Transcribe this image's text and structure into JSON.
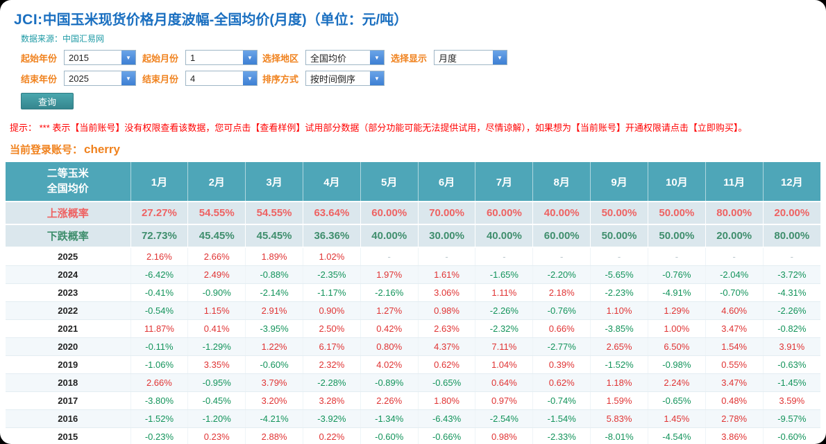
{
  "header": {
    "title_prefix": "JCI:",
    "title_main": "中国玉米现货价格月度波幅-全国均价(月度)（单位：元/吨）",
    "source": "数据来源：中国汇易网"
  },
  "filters": {
    "start_year": {
      "label": "起始年份",
      "value": "2015"
    },
    "start_month": {
      "label": "起始月份",
      "value": "1"
    },
    "region": {
      "label": "选择地区",
      "value": "全国均价"
    },
    "display": {
      "label": "选择显示",
      "value": "月度"
    },
    "end_year": {
      "label": "结束年份",
      "value": "2025"
    },
    "end_month": {
      "label": "结束月份",
      "value": "4"
    },
    "sort": {
      "label": "排序方式",
      "value": "按时间倒序"
    },
    "query_label": "查询"
  },
  "hint": {
    "text": "提示： *** 表示【当前账号】没有权限查看该数据，您可点击【查看样例】试用部分数据（部分功能可能无法提供试用，尽情谅解），如果想为【当前账号】开通权限请点击【立即购买】。"
  },
  "account": {
    "label": "当前登录账号：",
    "value": "cherry"
  },
  "table": {
    "corner": [
      "二等玉米",
      "全国均价"
    ],
    "months": [
      "1月",
      "2月",
      "3月",
      "4月",
      "5月",
      "6月",
      "7月",
      "8月",
      "9月",
      "10月",
      "11月",
      "12月"
    ],
    "rise": {
      "label": "上涨概率",
      "values": [
        "27.27%",
        "54.55%",
        "54.55%",
        "63.64%",
        "60.00%",
        "70.00%",
        "60.00%",
        "40.00%",
        "50.00%",
        "50.00%",
        "80.00%",
        "20.00%"
      ]
    },
    "fall": {
      "label": "下跌概率",
      "values": [
        "72.73%",
        "45.45%",
        "45.45%",
        "36.36%",
        "40.00%",
        "30.00%",
        "40.00%",
        "60.00%",
        "50.00%",
        "50.00%",
        "20.00%",
        "80.00%"
      ]
    },
    "years": [
      {
        "year": "2025",
        "values": [
          "2.16%",
          "2.66%",
          "1.89%",
          "1.02%",
          "-",
          "-",
          "-",
          "-",
          "-",
          "-",
          "-",
          "-"
        ]
      },
      {
        "year": "2024",
        "values": [
          "-6.42%",
          "2.49%",
          "-0.88%",
          "-2.35%",
          "1.97%",
          "1.61%",
          "-1.65%",
          "-2.20%",
          "-5.65%",
          "-0.76%",
          "-2.04%",
          "-3.72%"
        ]
      },
      {
        "year": "2023",
        "values": [
          "-0.41%",
          "-0.90%",
          "-2.14%",
          "-1.17%",
          "-2.16%",
          "3.06%",
          "1.11%",
          "2.18%",
          "-2.23%",
          "-4.91%",
          "-0.70%",
          "-4.31%"
        ]
      },
      {
        "year": "2022",
        "values": [
          "-0.54%",
          "1.15%",
          "2.91%",
          "0.90%",
          "1.27%",
          "0.98%",
          "-2.26%",
          "-0.76%",
          "1.10%",
          "1.29%",
          "4.60%",
          "-2.26%"
        ]
      },
      {
        "year": "2021",
        "values": [
          "11.87%",
          "0.41%",
          "-3.95%",
          "2.50%",
          "0.42%",
          "2.63%",
          "-2.32%",
          "0.66%",
          "-3.85%",
          "1.00%",
          "3.47%",
          "-0.82%"
        ]
      },
      {
        "year": "2020",
        "values": [
          "-0.11%",
          "-1.29%",
          "1.22%",
          "6.17%",
          "0.80%",
          "4.37%",
          "7.11%",
          "-2.77%",
          "2.65%",
          "6.50%",
          "1.54%",
          "3.91%"
        ]
      },
      {
        "year": "2019",
        "values": [
          "-1.06%",
          "3.35%",
          "-0.60%",
          "2.32%",
          "4.02%",
          "0.62%",
          "1.04%",
          "0.39%",
          "-1.52%",
          "-0.98%",
          "0.55%",
          "-0.63%"
        ]
      },
      {
        "year": "2018",
        "values": [
          "2.66%",
          "-0.95%",
          "3.79%",
          "-2.28%",
          "-0.89%",
          "-0.65%",
          "0.64%",
          "0.62%",
          "1.18%",
          "2.24%",
          "3.47%",
          "-1.45%"
        ]
      },
      {
        "year": "2017",
        "values": [
          "-3.80%",
          "-0.45%",
          "3.20%",
          "3.28%",
          "2.26%",
          "1.80%",
          "0.97%",
          "-0.74%",
          "1.59%",
          "-0.65%",
          "0.48%",
          "3.59%"
        ]
      },
      {
        "year": "2016",
        "values": [
          "-1.52%",
          "-1.20%",
          "-4.21%",
          "-3.92%",
          "-1.34%",
          "-6.43%",
          "-2.54%",
          "-1.54%",
          "5.83%",
          "1.45%",
          "2.78%",
          "-9.57%"
        ]
      },
      {
        "year": "2015",
        "values": [
          "-0.23%",
          "0.23%",
          "2.88%",
          "0.22%",
          "-0.60%",
          "-0.66%",
          "0.98%",
          "-2.33%",
          "-8.01%",
          "-4.54%",
          "3.86%",
          "-0.60%"
        ]
      }
    ]
  },
  "colors": {
    "title_blue": "#1a6fc0",
    "teal": "#1d9aa5",
    "label_orange": "#f0821e",
    "header_teal": "#4ea6b8",
    "rise_red": "#ee6262",
    "fall_green": "#3f8e6d",
    "pos_red": "#e03333",
    "neg_green": "#12935a"
  }
}
